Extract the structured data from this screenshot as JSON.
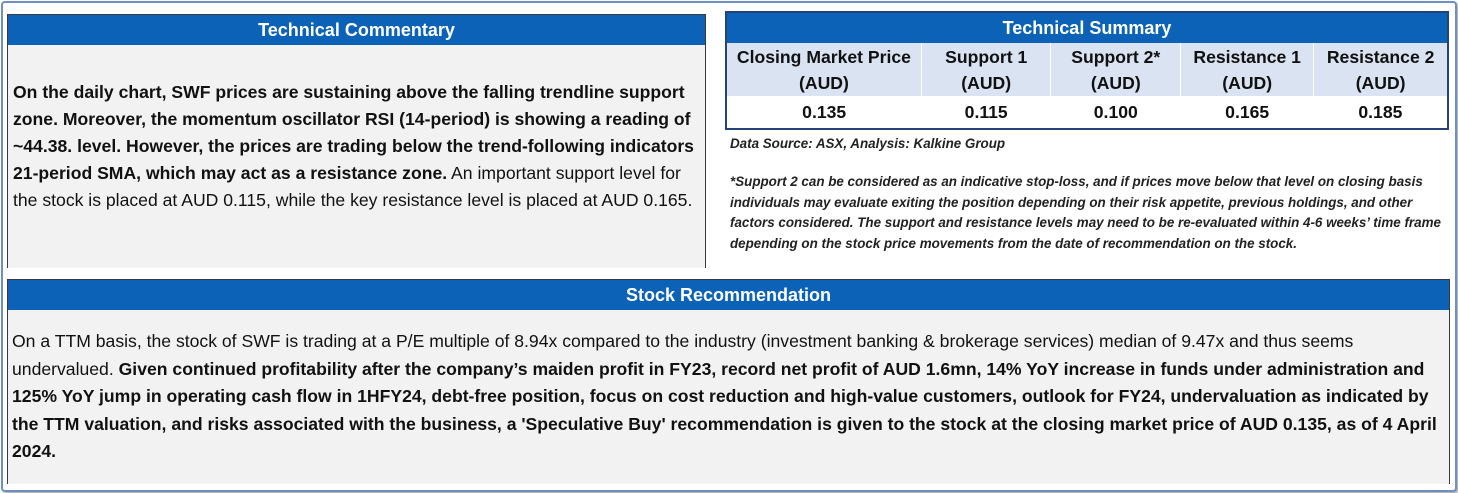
{
  "commentary": {
    "title": "Technical Commentary",
    "bold_text": "On the daily chart, SWF prices are sustaining above the falling trendline support zone. Moreover, the momentum oscillator RSI (14-period) is showing a reading of ~44.38. level. However, the prices are trading below the trend-following indicators 21-period SMA, which may act as a resistance zone.",
    "regular_text": " An important support level for the stock is placed at AUD 0.115, while the key resistance level is placed at AUD 0.165."
  },
  "summary": {
    "title": "Technical Summary",
    "columns": [
      {
        "line1": "Closing Market Price",
        "line2": "(AUD)",
        "value": "0.135"
      },
      {
        "line1": "Support 1",
        "line2": "(AUD)",
        "value": "0.115"
      },
      {
        "line1": "Support 2*",
        "line2": "(AUD)",
        "value": "0.100"
      },
      {
        "line1": "Resistance 1",
        "line2": "(AUD)",
        "value": "0.165"
      },
      {
        "line1": "Resistance 2",
        "line2": "(AUD)",
        "value": "0.185"
      }
    ],
    "data_source": "Data Source: ASX, Analysis: Kalkine Group",
    "footnote": "*Support 2 can be considered as an indicative stop-loss, and if prices move below that level on closing basis individuals may evaluate exiting the position depending on their risk appetite, previous holdings, and other factors considered. The support and resistance levels may need to be re-evaluated within 4-6 weeks’ time frame depending on the stock price movements from the date of recommendation on the stock."
  },
  "recommendation": {
    "title": "Stock Recommendation",
    "regular_text": "On a TTM basis, the stock of SWF is trading at a P/E multiple of 8.94x compared to the industry (investment banking & brokerage services) median of 9.47x and thus seems undervalued. ",
    "bold_text": "Given continued profitability after the company’s maiden profit in FY23, record net profit of AUD 1.6mn, 14% YoY increase in funds under administration and 125% YoY jump in operating cash flow in 1HFY24, debt-free position, focus on cost reduction and high-value customers, outlook for FY24, undervaluation as indicated by the TTM valuation, and risks associated with the business, a 'Speculative Buy' recommendation is given to the stock at the closing market price of AUD 0.135, as of 4 April 2024."
  },
  "colors": {
    "header_blue": "#0b62b7",
    "table_header_bg": "#d9e3f2",
    "panel_bg": "#f2f2f2",
    "frame_border": "#6f8fbf"
  }
}
